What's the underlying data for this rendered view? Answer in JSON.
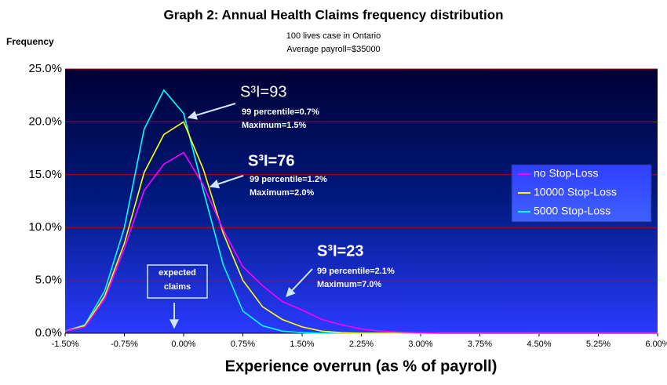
{
  "chart_data": {
    "type": "line",
    "title": "Graph 2: Annual Health Claims frequency distribution",
    "subtitle": [
      "100 lives case in Ontario",
      "Average payroll=$35000"
    ],
    "y_label": "Frequency",
    "x_label": "Experience overrun  (as % of payroll)",
    "x": [
      -1.5,
      -1.25,
      -1,
      -0.75,
      -0.5,
      -0.25,
      0,
      0.25,
      0.5,
      0.75,
      1,
      1.25,
      1.5,
      1.75,
      2,
      2.25,
      2.5,
      2.75,
      3,
      3.25,
      3.5,
      3.75,
      4,
      4.25,
      4.5,
      4.75,
      5,
      5.25,
      5.5,
      5.75,
      6
    ],
    "series": [
      {
        "name": "no Stop-Loss",
        "color": "#ff00ff",
        "values": [
          0.2,
          0.6,
          3.2,
          8,
          13.5,
          16,
          17.1,
          14,
          9.8,
          6.3,
          4.5,
          3,
          2.2,
          1.3,
          0.8,
          0.4,
          0.2,
          0.1,
          0.05,
          0,
          0,
          0,
          0,
          0,
          0,
          0,
          0,
          0,
          0,
          0,
          0
        ]
      },
      {
        "name": "10000 Stop-Loss",
        "color": "#ffff00",
        "values": [
          0.2,
          0.7,
          3.5,
          8.5,
          15.2,
          18.8,
          20,
          15.5,
          9.5,
          5,
          2.5,
          1.3,
          0.6,
          0.2,
          0.05,
          0,
          0,
          0,
          0,
          0,
          0,
          0,
          0,
          0,
          0,
          0,
          0,
          0,
          0,
          0,
          0
        ]
      },
      {
        "name": "5000 Stop-Loss",
        "color": "#00ffff",
        "values": [
          0.2,
          0.8,
          4,
          10,
          19.3,
          23,
          20.8,
          13.5,
          6.5,
          2.1,
          0.7,
          0.2,
          0.05,
          0,
          0,
          0,
          0,
          0,
          0,
          0,
          0,
          0,
          0,
          0,
          0,
          0,
          0,
          0,
          0,
          0,
          0
        ]
      }
    ],
    "xlim": [
      -1.5,
      6
    ],
    "xticks": [
      {
        "value": -1.5,
        "label": "-1.50%"
      },
      {
        "value": -0.75,
        "label": "-0.75%"
      },
      {
        "value": 0,
        "label": "0.00%"
      },
      {
        "value": 0.75,
        "label": "0.75%"
      },
      {
        "value": 1.5,
        "label": "1.50%"
      },
      {
        "value": 2.25,
        "label": "2.25%"
      },
      {
        "value": 3,
        "label": "3.00%"
      },
      {
        "value": 3.75,
        "label": "3.75%"
      },
      {
        "value": 4.5,
        "label": "4.50%"
      },
      {
        "value": 5.25,
        "label": "5.25%"
      },
      {
        "value": 6,
        "label": "6.00%"
      }
    ],
    "ylim": [
      0,
      25
    ],
    "yticks": [
      {
        "value": 0,
        "label": "0.0%"
      },
      {
        "value": 5,
        "label": "5.0%"
      },
      {
        "value": 10,
        "label": "10.0%"
      },
      {
        "value": 15,
        "label": "15.0%"
      },
      {
        "value": 20,
        "label": "20.0%"
      },
      {
        "value": 25,
        "label": "25.0%"
      }
    ],
    "grid": true,
    "grid_color": "#cc0000",
    "legend": "right",
    "annotations": [
      "S³I=93",
      "99 percentile=0.7%",
      "Maximum=1.5%",
      "S³I=76",
      "99 percentile=1.2%",
      "Maximum=2.0%",
      "S³I=23",
      "99 percentile=2.1%",
      "Maximum=7.0%",
      "expected",
      "claims"
    ]
  }
}
